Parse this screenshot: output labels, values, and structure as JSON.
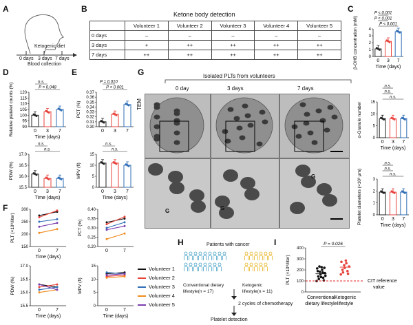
{
  "panels": {
    "A": "A",
    "B": "B",
    "C": "C",
    "D": "D",
    "E": "E",
    "F": "F",
    "G": "G",
    "H": "H",
    "I": "I"
  },
  "panelA": {
    "diet": "Ketogenic diet",
    "days": [
      "0 days",
      "3 days",
      "7 days"
    ],
    "collection": "Blood collection"
  },
  "panelB": {
    "title": "Ketone body detection",
    "columns": [
      "",
      "Volunteer 1",
      "Volunteer 2",
      "Volunteer 3",
      "Volunteer 4",
      "Volunteer 5"
    ],
    "rows": [
      [
        "0 days",
        "–",
        "–",
        "–",
        "–",
        "–"
      ],
      [
        "3 days",
        "+",
        "++",
        "++",
        "++",
        "++"
      ],
      [
        "7 days",
        "++",
        "++",
        "++",
        "++",
        "++"
      ]
    ]
  },
  "panelG": {
    "title": "Isolated PLTs from volunteers",
    "columns": [
      "0 day",
      "3 days",
      "7 days"
    ],
    "row_label": "TEM",
    "granule_mark": "G"
  },
  "panelH": {
    "title": "Patients with cancer",
    "group1": "Conventional dietary lifestyle(n = 17)",
    "group2": "Ketogenic lifestyle(n = 11)",
    "step1": "2 cycles of chemotherapy",
    "step2": "Platelet detection",
    "group1_count": 17,
    "group2_count": 11
  },
  "colors": {
    "d0": "#222222",
    "d3": "#e8403a",
    "d7": "#2e6db5",
    "v1": "#111111",
    "v2": "#e8403a",
    "v3": "#2e6db5",
    "v4": "#f08a1c",
    "v5": "#7a3fb0",
    "conv_icon": "#4aa3c8",
    "keto_icon": "#e6b422",
    "ref_line": "#e02020"
  },
  "chart_data": [
    {
      "panel": "C",
      "type": "bar",
      "categories": [
        "0",
        "3",
        "7"
      ],
      "values": [
        1.1,
        2.2,
        3.6
      ],
      "ylabel": "β-OHB concentration (mM)",
      "xlabel": "Time (days)",
      "ylim": [
        0,
        4
      ],
      "yticks": [
        "0",
        "1",
        "2",
        "3",
        "4"
      ],
      "annotations": [
        "P < 0.001",
        "P < 0.001",
        "P < 0.001"
      ]
    },
    {
      "panel": "D",
      "type": "bar",
      "categories": [
        "0",
        "3",
        "7"
      ],
      "values": [
        100,
        103,
        105
      ],
      "ylabel": "Relative platelet counts (%)",
      "xlabel": "Time (days)",
      "ylim": [
        90,
        120
      ],
      "yticks": [
        "90",
        "95",
        "100",
        "105",
        "110",
        "115",
        "120"
      ],
      "annotations": [
        "P = 0.048",
        "n.s."
      ]
    },
    {
      "panel": "D2",
      "type": "bar",
      "categories": [
        "0",
        "3",
        "7"
      ],
      "values": [
        16.1,
        15.9,
        15.9
      ],
      "ylabel": "PDW (%)",
      "xlabel": "Time (days)",
      "ylim": [
        15.5,
        17.0
      ],
      "yticks": [
        "15.5",
        "16.0",
        "16.5",
        "17.0"
      ],
      "annotations": [
        "n.s.",
        "n.s."
      ]
    },
    {
      "panel": "E",
      "type": "bar",
      "categories": [
        "0",
        "3",
        "7"
      ],
      "values": [
        0.31,
        0.325,
        0.345
      ],
      "ylabel": "PCT (%)",
      "xlabel": "",
      "ylim": [
        0.3,
        0.37
      ],
      "yticks": [
        "0.30",
        "0.31",
        "0.32",
        "0.33",
        "0.34",
        "0.35",
        "0.36",
        "0.37"
      ],
      "annotations": [
        "P < 0.001",
        "P = 0.010"
      ]
    },
    {
      "panel": "E2",
      "type": "bar",
      "categories": [
        "0",
        "3",
        "7"
      ],
      "values": [
        11,
        11,
        10
      ],
      "ylabel": "MPV (fl)",
      "xlabel": "Time (days)",
      "ylim": [
        0,
        15
      ],
      "yticks": [
        "0",
        "5",
        "10",
        "15"
      ],
      "annotations": [
        "n.s.",
        "n.s."
      ]
    },
    {
      "panel": "F1",
      "type": "line",
      "x": [
        "0",
        "7"
      ],
      "ylabel": "PLT (×10⁹/liter)",
      "xlabel": "Time (days)",
      "ylim": [
        150,
        300
      ],
      "yticks": [
        "150",
        "200",
        "250",
        "300"
      ],
      "series": [
        {
          "name": "Volunteer 1",
          "values": [
            275,
            290
          ]
        },
        {
          "name": "Volunteer 2",
          "values": [
            268,
            295
          ]
        },
        {
          "name": "Volunteer 3",
          "values": [
            250,
            260
          ]
        },
        {
          "name": "Volunteer 4",
          "values": [
            205,
            220
          ]
        },
        {
          "name": "Volunteer 5",
          "values": [
            230,
            245
          ]
        }
      ]
    },
    {
      "panel": "F2",
      "type": "line",
      "x": [
        "0",
        "7"
      ],
      "ylabel": "PCT (%)",
      "xlabel": "",
      "ylim": [
        0.2,
        0.4
      ],
      "yticks": [
        "0.20",
        "0.25",
        "0.30",
        "0.35",
        "0.40"
      ],
      "series": [
        {
          "name": "Volunteer 1",
          "values": [
            0.33,
            0.35
          ]
        },
        {
          "name": "Volunteer 2",
          "values": [
            0.32,
            0.36
          ]
        },
        {
          "name": "Volunteer 3",
          "values": [
            0.3,
            0.33
          ]
        },
        {
          "name": "Volunteer 4",
          "values": [
            0.24,
            0.27
          ]
        },
        {
          "name": "Volunteer 5",
          "values": [
            0.29,
            0.31
          ]
        }
      ]
    },
    {
      "panel": "F3",
      "type": "line",
      "x": [
        "0",
        "7"
      ],
      "ylabel": "PDW (%)",
      "xlabel": "Time (days)",
      "ylim": [
        15.5,
        17.0
      ],
      "yticks": [
        "15.5",
        "16.0",
        "16.5",
        "17.0"
      ],
      "series": [
        {
          "name": "Volunteer 1",
          "values": [
            16.3,
            16.2
          ]
        },
        {
          "name": "Volunteer 2",
          "values": [
            16.2,
            16.3
          ]
        },
        {
          "name": "Volunteer 3",
          "values": [
            16.1,
            16.2
          ]
        },
        {
          "name": "Volunteer 4",
          "values": [
            16.0,
            16.1
          ]
        },
        {
          "name": "Volunteer 5",
          "values": [
            16.3,
            16.1
          ]
        }
      ]
    },
    {
      "panel": "F4",
      "type": "line",
      "x": [
        "0",
        "7"
      ],
      "ylabel": "MPV (fl)",
      "xlabel": "Time (days)",
      "ylim": [
        0,
        15
      ],
      "yticks": [
        "0",
        "5",
        "10",
        "15"
      ],
      "series": [
        {
          "name": "Volunteer 1",
          "values": [
            12,
            12.5
          ]
        },
        {
          "name": "Volunteer 2",
          "values": [
            11,
            11.5
          ]
        },
        {
          "name": "Volunteer 3",
          "values": [
            12.5,
            12
          ]
        },
        {
          "name": "Volunteer 4",
          "values": [
            10.5,
            11
          ]
        },
        {
          "name": "Volunteer 5",
          "values": [
            11.5,
            12
          ]
        }
      ]
    },
    {
      "panel": "G1",
      "type": "bar",
      "categories": [
        "0",
        "3",
        "7"
      ],
      "values": [
        8,
        8,
        8
      ],
      "ylabel": "α-Granule number",
      "xlabel": "Time (days)",
      "ylim": [
        0,
        15
      ],
      "yticks": [
        "0",
        "5",
        "10",
        "15"
      ],
      "annotations": [
        "n.s.",
        "n.s.",
        "n.s."
      ]
    },
    {
      "panel": "G2",
      "type": "bar",
      "categories": [
        "0",
        "3",
        "7"
      ],
      "values": [
        1.9,
        1.9,
        1.9
      ],
      "ylabel": "Platelet diameters (×10³ μm)",
      "xlabel": "Time (days)",
      "ylim": [
        0,
        3
      ],
      "yticks": [
        "0",
        "1",
        "2",
        "3"
      ],
      "annotations": [
        "n.s.",
        "n.s.",
        "n.s."
      ]
    },
    {
      "panel": "I",
      "type": "scatter",
      "categories": [
        "Conventional dietary lifestyle",
        "Ketogenic lifestyle"
      ],
      "values": [
        165,
        225
      ],
      "ylabel": "PLT (×10⁹/liter)",
      "xlabel": "",
      "ylim": [
        0,
        400
      ],
      "yticks": [
        "0",
        "100",
        "200",
        "300",
        "400"
      ],
      "annotations": [
        "P = 0.026"
      ],
      "reference": {
        "value": 100,
        "label": "CIT reference value"
      }
    }
  ]
}
